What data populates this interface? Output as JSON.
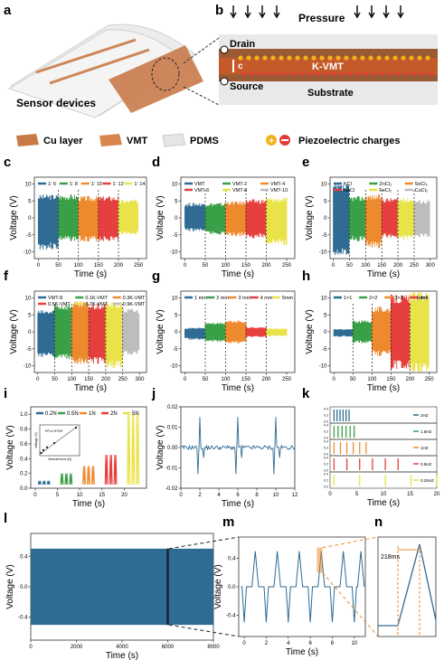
{
  "panels": {
    "a": {
      "letter": "a",
      "caption": "Sensor devices"
    },
    "b": {
      "letter": "b",
      "pressure": "Pressure",
      "drain": "Drain",
      "source": "Source",
      "axis": "c",
      "layer": "K-VMT",
      "substrate": "Substrate"
    }
  },
  "legend_row": {
    "cu": "Cu layer",
    "vmt": "VMT",
    "pdms": "PDMS",
    "charges": "Piezoelectric charges",
    "colors": {
      "cu": "#c77a45",
      "vmt": "#d7864c",
      "pdms": "#e6e6e6",
      "plus": "#f2b21a",
      "minus": "#e23b3b"
    }
  },
  "colors": [
    "#2f6b93",
    "#3aa047",
    "#ee8a2e",
    "#e5403e",
    "#e9e34a",
    "#bdbdbd"
  ],
  "chart_data": [
    {
      "id": "c",
      "letter": "c",
      "type": "line",
      "xlabel": "Time (s)",
      "ylabel": "Voltage (V)",
      "xlim": [
        -10,
        270
      ],
      "ylim": [
        -12,
        12
      ],
      "xticks": [
        0,
        50,
        100,
        150,
        200,
        250
      ],
      "yticks": [
        -10,
        -5,
        0,
        5,
        10
      ],
      "series": [
        {
          "name": "1∶ 6",
          "x": [
            0,
            50
          ],
          "amp": [
            7,
            -9.5
          ]
        },
        {
          "name": "1∶ 8",
          "x": [
            50,
            100
          ],
          "amp": [
            7,
            -7
          ]
        },
        {
          "name": "1∶ 10",
          "x": [
            100,
            150
          ],
          "amp": [
            6.5,
            -7
          ]
        },
        {
          "name": "1∶ 12",
          "x": [
            150,
            200
          ],
          "amp": [
            6.5,
            -7
          ]
        },
        {
          "name": "1∶ 14",
          "x": [
            200,
            250
          ],
          "amp": [
            5.5,
            -5
          ]
        }
      ]
    },
    {
      "id": "d",
      "letter": "d",
      "type": "line",
      "xlabel": "Time (s)",
      "ylabel": "Voltage (V)",
      "xlim": [
        -10,
        270
      ],
      "ylim": [
        -12,
        12
      ],
      "xticks": [
        0,
        50,
        100,
        150,
        200,
        250
      ],
      "yticks": [
        -10,
        -5,
        0,
        5,
        10
      ],
      "series": [
        {
          "name": "VMT",
          "x": [
            0,
            50
          ],
          "amp": [
            4.5,
            -4
          ]
        },
        {
          "name": "VMT-2",
          "x": [
            50,
            100
          ],
          "amp": [
            4.5,
            -5
          ]
        },
        {
          "name": "VMT-4",
          "x": [
            100,
            150
          ],
          "amp": [
            5,
            -5.5
          ]
        },
        {
          "name": "VMT-6",
          "x": [
            150,
            200
          ],
          "amp": [
            5.5,
            -6
          ]
        },
        {
          "name": "VMT-8",
          "x": [
            200,
            250
          ],
          "amp": [
            6,
            -8
          ]
        },
        {
          "name": "VMT-10",
          "x": [
            250,
            300
          ],
          "amp": [
            0,
            0
          ]
        }
      ]
    },
    {
      "id": "e",
      "letter": "e",
      "type": "line",
      "xlabel": "Time (s)",
      "ylabel": "Voltage (V)",
      "xlim": [
        -10,
        320
      ],
      "ylim": [
        -12,
        12
      ],
      "xticks": [
        0,
        50,
        100,
        150,
        200,
        250,
        300
      ],
      "yticks": [
        -10,
        -5,
        0,
        5,
        10
      ],
      "series": [
        {
          "name": "KCl",
          "x": [
            0,
            50
          ],
          "amp": [
            10,
            -11
          ]
        },
        {
          "name": "ZnCl₂",
          "x": [
            50,
            100
          ],
          "amp": [
            6.5,
            -7
          ]
        },
        {
          "name": "SnCl₂",
          "x": [
            100,
            150
          ],
          "amp": [
            7,
            -9
          ]
        },
        {
          "name": "NaCl",
          "x": [
            150,
            200
          ],
          "amp": [
            6,
            -6
          ]
        },
        {
          "name": "FeCl₂",
          "x": [
            200,
            250
          ],
          "amp": [
            6,
            -6.5
          ]
        },
        {
          "name": "CuCl₂",
          "x": [
            250,
            300
          ],
          "amp": [
            5.5,
            -6
          ]
        }
      ]
    },
    {
      "id": "f",
      "letter": "f",
      "type": "line",
      "xlabel": "Time (s)",
      "ylabel": "Voltage (V)",
      "xlim": [
        -10,
        320
      ],
      "ylim": [
        -12,
        12
      ],
      "xticks": [
        0,
        50,
        100,
        150,
        200,
        250,
        300
      ],
      "yticks": [
        -10,
        -5,
        0,
        5,
        10
      ],
      "series": [
        {
          "name": "VMT-8",
          "x": [
            0,
            50
          ],
          "amp": [
            6.5,
            -7.5
          ]
        },
        {
          "name": "0.1K-VMT",
          "x": [
            50,
            100
          ],
          "amp": [
            8.5,
            -8.5
          ]
        },
        {
          "name": "0.3K-VMT",
          "x": [
            100,
            150
          ],
          "amp": [
            9,
            -9.5
          ]
        },
        {
          "name": "0.5K-VMT",
          "x": [
            150,
            200
          ],
          "amp": [
            8.5,
            -9.5
          ]
        },
        {
          "name": "0.7K-VMT",
          "x": [
            200,
            250
          ],
          "amp": [
            9,
            -11
          ]
        },
        {
          "name": "0.9K-VMT",
          "x": [
            250,
            300
          ],
          "amp": [
            7,
            -7
          ]
        }
      ]
    },
    {
      "id": "g",
      "letter": "g",
      "type": "line",
      "xlabel": "Time (s)",
      "ylabel": "Voltage (V)",
      "xlim": [
        -10,
        270
      ],
      "ylim": [
        -12,
        12
      ],
      "xticks": [
        0,
        50,
        100,
        150,
        200,
        250
      ],
      "yticks": [
        -10,
        -5,
        0,
        5,
        10
      ],
      "series": [
        {
          "name": "1 mm",
          "x": [
            0,
            50
          ],
          "amp": [
            1.2,
            -2.4
          ]
        },
        {
          "name": "2 mm",
          "x": [
            50,
            100
          ],
          "amp": [
            2.8,
            -3
          ]
        },
        {
          "name": "3 mm",
          "x": [
            100,
            150
          ],
          "amp": [
            3.4,
            -3.5
          ]
        },
        {
          "name": "4 mm",
          "x": [
            150,
            200
          ],
          "amp": [
            1.4,
            -1.6
          ]
        },
        {
          "name": "5mm",
          "x": [
            200,
            250
          ],
          "amp": [
            1,
            -1.3
          ]
        }
      ]
    },
    {
      "id": "h",
      "letter": "h",
      "type": "line",
      "xlabel": "Time (s)",
      "ylabel": "Voltage (V)",
      "unit_note": "(cm)",
      "xlim": [
        -10,
        270
      ],
      "ylim": [
        -12,
        12
      ],
      "xticks": [
        0,
        50,
        100,
        150,
        200,
        250
      ],
      "yticks": [
        -10,
        -5,
        0,
        5,
        10
      ],
      "series": [
        {
          "name": "1×1",
          "x": [
            0,
            50
          ],
          "amp": [
            0.8,
            -1.5
          ]
        },
        {
          "name": "2×2",
          "x": [
            50,
            100
          ],
          "amp": [
            3.4,
            -3.4
          ]
        },
        {
          "name": "3×3",
          "x": [
            100,
            150
          ],
          "amp": [
            7.5,
            -7.2
          ]
        },
        {
          "name": "4×4",
          "x": [
            150,
            200
          ],
          "amp": [
            11,
            -11
          ]
        },
        {
          "name": "",
          "x": [
            200,
            250
          ],
          "amp": [
            12,
            -12
          ]
        }
      ]
    },
    {
      "id": "i",
      "letter": "i",
      "type": "line",
      "xlabel": "Time (s)",
      "ylabel": "Voltage (V)",
      "xlim": [
        -1,
        25
      ],
      "ylim": [
        0,
        1.1
      ],
      "xticks": [
        0,
        5,
        10,
        15,
        20
      ],
      "yticks": [
        0.0,
        0.2,
        0.4,
        0.6,
        0.8,
        1.0
      ],
      "series": [
        {
          "name": "0.2N",
          "peaks": [
            1,
            2,
            3
          ],
          "height": 0.1
        },
        {
          "name": "0.5N",
          "peaks": [
            6,
            7,
            8
          ],
          "height": 0.2
        },
        {
          "name": "1N",
          "peaks": [
            11,
            12,
            13
          ],
          "height": 0.3
        },
        {
          "name": "2N",
          "peaks": [
            16,
            17,
            18
          ],
          "height": 0.45
        },
        {
          "name": "5N",
          "peaks": [
            21,
            22,
            23
          ],
          "height": 1.0
        }
      ],
      "inset": {
        "annotation": "R²=0.9709",
        "xlabel": "Vertical force (N)",
        "ylabel": "Voltage (V)",
        "x": [
          0.2,
          0.5,
          1,
          2,
          5
        ],
        "y": [
          0.1,
          0.2,
          0.3,
          0.45,
          1.0
        ]
      }
    },
    {
      "id": "j",
      "letter": "j",
      "type": "line",
      "xlabel": "Time (s)",
      "ylabel": "Voltage (V)",
      "xlim": [
        0,
        12
      ],
      "ylim": [
        -0.02,
        0.02
      ],
      "xticks": [
        0,
        2,
        4,
        6,
        8,
        10,
        12
      ],
      "yticks": [
        -0.02,
        -0.01,
        0.0,
        0.01,
        0.02
      ],
      "series": [
        {
          "name": "",
          "peaks": [
            2,
            6,
            10
          ],
          "height": 0.015
        }
      ]
    },
    {
      "id": "k",
      "letter": "k",
      "type": "line",
      "xlabel": "Time (s)",
      "xlim": [
        0,
        20
      ],
      "xticks": [
        0,
        5,
        10,
        15,
        20
      ],
      "yticks": [
        0.0,
        0.2,
        0.4
      ],
      "series": [
        {
          "name": "2HZ",
          "period": 0.5
        },
        {
          "name": "1.5HZ",
          "period": 0.67
        },
        {
          "name": "1HZ",
          "period": 1
        },
        {
          "name": "0.5HZ",
          "period": 2
        },
        {
          "name": "0.25HZ",
          "period": 4
        }
      ]
    },
    {
      "id": "l",
      "letter": "l",
      "type": "area",
      "xlabel": "Time (s)",
      "ylabel": "Voltage (V)",
      "xlim": [
        0,
        8000
      ],
      "ylim": [
        -0.7,
        0.7
      ],
      "xticks": [
        0,
        2000,
        4000,
        6000,
        8000
      ],
      "yticks": [
        -0.4,
        0.0,
        0.4
      ],
      "amp": [
        0.5,
        -0.5
      ],
      "highlight": [
        5950,
        6050
      ]
    },
    {
      "id": "m",
      "letter": "m",
      "type": "line",
      "xlabel": "Time (s)",
      "ylabel": "Voltage (V)",
      "xlim": [
        -0.5,
        11
      ],
      "ylim": [
        -0.7,
        0.7
      ],
      "xticks": [
        0,
        2,
        4,
        6,
        8,
        10
      ],
      "yticks": [
        -0.4,
        0.0,
        0.4
      ],
      "peaks": [
        1,
        3,
        5,
        7,
        9,
        10.6
      ],
      "troughs": [
        0,
        2,
        4,
        6,
        8,
        10
      ],
      "highlight": [
        6.6,
        7.1
      ]
    },
    {
      "id": "n",
      "letter": "n",
      "type": "line",
      "annotation": "218ms"
    }
  ]
}
